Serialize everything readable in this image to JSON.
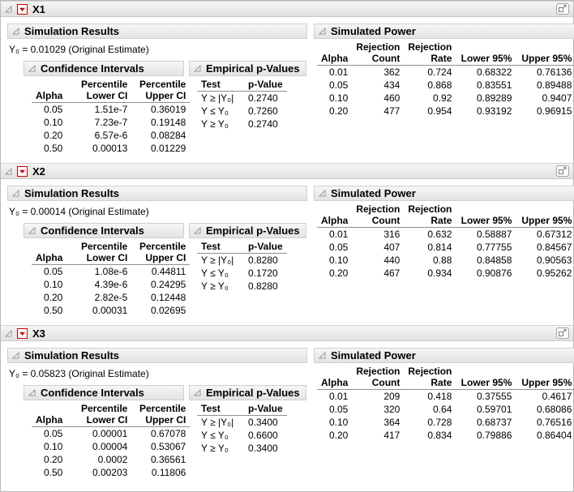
{
  "colors": {
    "menu_icon_red": "#cc0000",
    "header_bar_top": "#f6f6f5",
    "header_bar_bottom": "#e3e3e1"
  },
  "icons": {
    "disclosure": "open-disclosure-triangle",
    "red_menu": "red-triangle-menu",
    "corner": "popout-window"
  },
  "sections": [
    {
      "title": "X1",
      "simulation_results_title": "Simulation Results",
      "estimate": "Y₀ = 0.01029 (Original Estimate)",
      "simulated_power_title": "Simulated Power",
      "confidence_intervals": {
        "title": "Confidence Intervals",
        "headers": [
          "Alpha",
          "Percentile\nLower CI",
          "Percentile\nUpper CI"
        ],
        "rows": [
          [
            "0.05",
            "1.51e-7",
            "0.36019"
          ],
          [
            "0.10",
            "7.23e-7",
            "0.19148"
          ],
          [
            "0.20",
            "6.57e-6",
            "0.08284"
          ],
          [
            "0.50",
            "0.00013",
            "0.01229"
          ]
        ]
      },
      "empirical_pvalues": {
        "title": "Empirical p-Values",
        "headers": [
          "Test",
          "p-Value"
        ],
        "rows": [
          [
            "Y ≥ |Y₀|",
            "0.2740"
          ],
          [
            "Y ≤ Y₀",
            "0.7260"
          ],
          [
            "Y ≥ Y₀",
            "0.2740"
          ]
        ]
      },
      "simulated_power": {
        "headers": [
          "Alpha",
          "Rejection\nCount",
          "Rejection\nRate",
          "Lower 95%",
          "Upper 95%"
        ],
        "rows": [
          [
            "0.01",
            "362",
            "0.724",
            "0.68322",
            "0.76136"
          ],
          [
            "0.05",
            "434",
            "0.868",
            "0.83551",
            "0.89488"
          ],
          [
            "0.10",
            "460",
            "0.92",
            "0.89289",
            "0.9407"
          ],
          [
            "0.20",
            "477",
            "0.954",
            "0.93192",
            "0.96915"
          ]
        ]
      }
    },
    {
      "title": "X2",
      "simulation_results_title": "Simulation Results",
      "estimate": "Y₀ = 0.00014 (Original Estimate)",
      "simulated_power_title": "Simulated Power",
      "confidence_intervals": {
        "title": "Confidence Intervals",
        "headers": [
          "Alpha",
          "Percentile\nLower CI",
          "Percentile\nUpper CI"
        ],
        "rows": [
          [
            "0.05",
            "1.08e-6",
            "0.44811"
          ],
          [
            "0.10",
            "4.39e-6",
            "0.24295"
          ],
          [
            "0.20",
            "2.82e-5",
            "0.12448"
          ],
          [
            "0.50",
            "0.00031",
            "0.02695"
          ]
        ]
      },
      "empirical_pvalues": {
        "title": "Empirical p-Values",
        "headers": [
          "Test",
          "p-Value"
        ],
        "rows": [
          [
            "Y ≥ |Y₀|",
            "0.8280"
          ],
          [
            "Y ≤ Y₀",
            "0.1720"
          ],
          [
            "Y ≥ Y₀",
            "0.8280"
          ]
        ]
      },
      "simulated_power": {
        "headers": [
          "Alpha",
          "Rejection\nCount",
          "Rejection\nRate",
          "Lower 95%",
          "Upper 95%"
        ],
        "rows": [
          [
            "0.01",
            "316",
            "0.632",
            "0.58887",
            "0.67312"
          ],
          [
            "0.05",
            "407",
            "0.814",
            "0.77755",
            "0.84567"
          ],
          [
            "0.10",
            "440",
            "0.88",
            "0.84858",
            "0.90563"
          ],
          [
            "0.20",
            "467",
            "0.934",
            "0.90876",
            "0.95262"
          ]
        ]
      }
    },
    {
      "title": "X3",
      "simulation_results_title": "Simulation Results",
      "estimate": "Y₀ = 0.05823 (Original Estimate)",
      "simulated_power_title": "Simulated Power",
      "confidence_intervals": {
        "title": "Confidence Intervals",
        "headers": [
          "Alpha",
          "Percentile\nLower CI",
          "Percentile\nUpper CI"
        ],
        "rows": [
          [
            "0.05",
            "0.00001",
            "0.67078"
          ],
          [
            "0.10",
            "0.00004",
            "0.53067"
          ],
          [
            "0.20",
            "0.0002",
            "0.36561"
          ],
          [
            "0.50",
            "0.00203",
            "0.11806"
          ]
        ]
      },
      "empirical_pvalues": {
        "title": "Empirical p-Values",
        "headers": [
          "Test",
          "p-Value"
        ],
        "rows": [
          [
            "Y ≥ |Y₀|",
            "0.3400"
          ],
          [
            "Y ≤ Y₀",
            "0.6600"
          ],
          [
            "Y ≥ Y₀",
            "0.3400"
          ]
        ]
      },
      "simulated_power": {
        "headers": [
          "Alpha",
          "Rejection\nCount",
          "Rejection\nRate",
          "Lower 95%",
          "Upper 95%"
        ],
        "rows": [
          [
            "0.01",
            "209",
            "0.418",
            "0.37555",
            "0.4617"
          ],
          [
            "0.05",
            "320",
            "0.64",
            "0.59701",
            "0.68086"
          ],
          [
            "0.10",
            "364",
            "0.728",
            "0.68737",
            "0.76516"
          ],
          [
            "0.20",
            "417",
            "0.834",
            "0.79886",
            "0.86404"
          ]
        ]
      }
    }
  ]
}
